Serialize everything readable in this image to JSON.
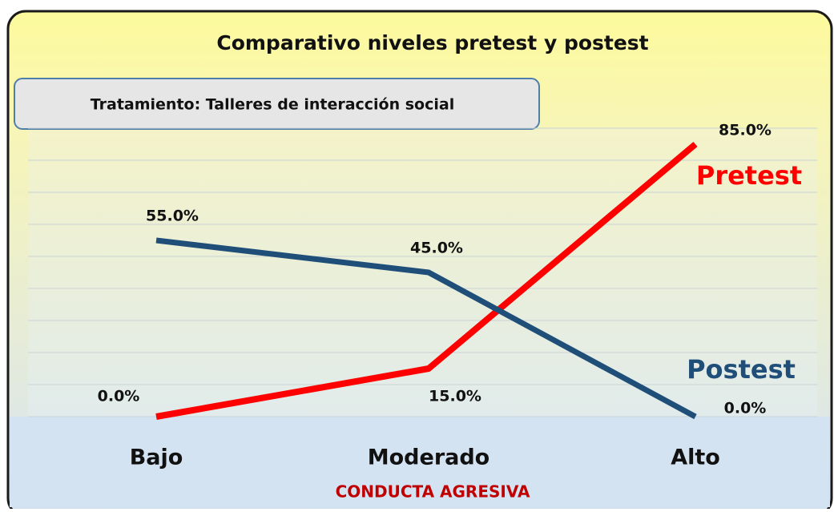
{
  "chart_data": {
    "type": "line",
    "title": "Comparativo niveles pretest y postest",
    "annotation": "Tratamiento: Talleres de interacción social",
    "x_label": "CONDUCTA AGRESIVA",
    "categories": [
      "Bajo",
      "Moderado",
      "Alto"
    ],
    "series": [
      {
        "name": "Pretest",
        "color": "#ff0000",
        "values": [
          0,
          15,
          85
        ],
        "value_labels": [
          "0.0%",
          "15.0%",
          "85.0%"
        ]
      },
      {
        "name": "Postest",
        "color": "#1f4e79",
        "values": [
          55,
          45,
          0
        ],
        "value_labels": [
          "55.0%",
          "45.0%",
          "0.0%"
        ]
      }
    ],
    "ylim": [
      0,
      90
    ],
    "yticks": [
      0,
      10,
      20,
      30,
      40,
      50,
      60,
      70,
      80,
      90
    ],
    "grid": true
  }
}
